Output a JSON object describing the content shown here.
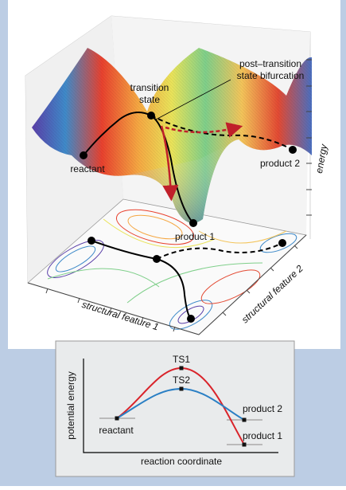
{
  "surface_panel": {
    "post_transition_label": [
      "post–transition",
      "state bifurcation"
    ],
    "transition_state_label": [
      "transition",
      "state"
    ],
    "reactant_label": "reactant",
    "product2_label": "product 2",
    "product1_label": "product 1",
    "energy_axis_label": "energy",
    "feature1_axis_label": "structural feature 1",
    "feature2_axis_label": "structural feature 2"
  },
  "inset": {
    "y_axis_label": "potential energy",
    "x_axis_label": "reaction coordinate",
    "ts1_label": "TS1",
    "ts2_label": "TS2",
    "reactant_label": "reactant",
    "product2_label": "product 2",
    "product1_label": "product 1"
  }
}
